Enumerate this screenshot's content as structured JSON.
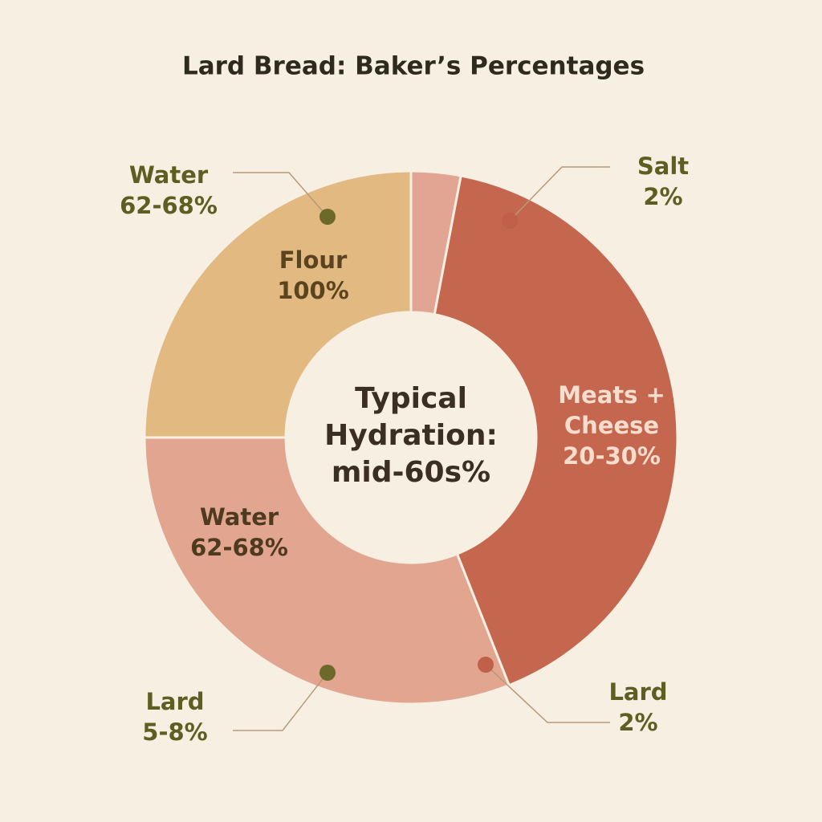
{
  "chart_data": {
    "type": "donut",
    "title": "Lard Bread: Baker’s Percentages",
    "values": [
      3,
      41,
      31,
      25
    ],
    "colors": [
      "#e3a593",
      "#c4674e",
      "#e2a58f",
      "#e2b981"
    ],
    "labels": [
      null,
      [
        "Meats +",
        "Cheese",
        "20-30%"
      ],
      [
        "Water",
        "62-68%"
      ],
      [
        "Flour",
        "100%"
      ]
    ],
    "center_text": [
      "Typical",
      "Hydration:",
      "mid-60s%"
    ],
    "callouts": [
      {
        "text": [
          "Water",
          "62-68%"
        ]
      },
      {
        "text": [
          "Salt",
          "2%"
        ]
      },
      {
        "text": [
          "Lard",
          "5-8%"
        ]
      },
      {
        "text": [
          "Lard",
          "2%"
        ]
      }
    ]
  }
}
